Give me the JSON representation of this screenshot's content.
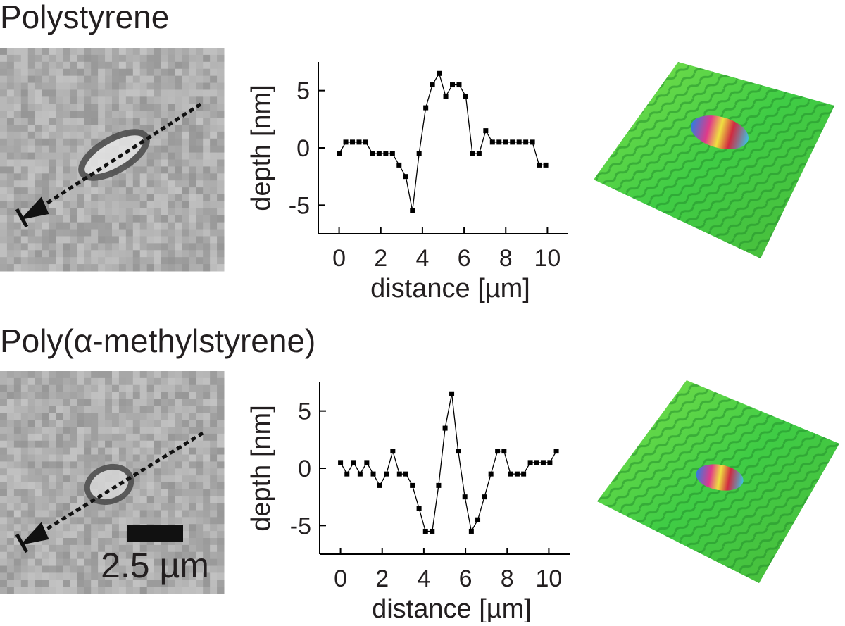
{
  "chart_data": [
    {
      "type": "line",
      "title": "Polystyrene",
      "x_label": "distance [µm]",
      "y_label": "depth [nm]",
      "color": "#000000",
      "marker": "square",
      "x": [
        0,
        0.32,
        0.64,
        0.96,
        1.28,
        1.6,
        1.92,
        2.24,
        2.56,
        2.88,
        3.2,
        3.52,
        3.84,
        4.16,
        4.48,
        4.8,
        5.12,
        5.44,
        5.76,
        6.08,
        6.4,
        6.72,
        7.04,
        7.36,
        7.68,
        8,
        8.32,
        8.64,
        8.96,
        9.28,
        9.6,
        9.92
      ],
      "values": [
        -0.5,
        0.5,
        0.5,
        0.5,
        0.5,
        -0.5,
        -0.5,
        -0.5,
        -0.5,
        -1.5,
        -2.5,
        -5.5,
        -0.5,
        3.5,
        5.5,
        6.5,
        4.5,
        5.5,
        5.5,
        4.5,
        -0.5,
        -0.5,
        1.5,
        0.5,
        0.5,
        0.5,
        0.5,
        0.5,
        0.5,
        0.5,
        -1.5,
        -1.5
      ],
      "xlim": [
        -1,
        11
      ],
      "ylim": [
        -7.5,
        7.5
      ],
      "xticks": [
        0,
        2,
        4,
        6,
        8,
        10
      ],
      "yticks": [
        -5,
        0,
        5
      ]
    },
    {
      "type": "line",
      "title": "Poly(α-methylstyrene)",
      "x_label": "distance [µm]",
      "y_label": "depth [nm]",
      "color": "#000000",
      "marker": "square",
      "x": [
        0,
        0.31,
        0.63,
        0.94,
        1.26,
        1.57,
        1.88,
        2.2,
        2.51,
        2.83,
        3.14,
        3.45,
        3.77,
        4.08,
        4.4,
        4.71,
        5.02,
        5.34,
        5.65,
        5.97,
        6.28,
        6.59,
        6.91,
        7.22,
        7.54,
        7.85,
        8.16,
        8.48,
        8.79,
        9.11,
        9.42,
        9.73,
        10.05,
        10.36
      ],
      "values": [
        0.5,
        -0.5,
        0.5,
        -0.5,
        0.5,
        -0.5,
        -1.5,
        -0.5,
        1.5,
        -0.5,
        -0.5,
        -1.5,
        -3.5,
        -5.5,
        -5.5,
        -1.5,
        3.5,
        6.5,
        1.5,
        -2.5,
        -5.5,
        -4.5,
        -2.5,
        -0.5,
        1.5,
        1.5,
        -0.5,
        -0.5,
        -0.5,
        0.5,
        0.5,
        0.5,
        0.5,
        1.5
      ],
      "xlim": [
        -1,
        11
      ],
      "ylim": [
        -7.5,
        7.5
      ],
      "xticks": [
        0,
        2,
        4,
        6,
        8,
        10
      ],
      "yticks": [
        -5,
        0,
        5
      ]
    }
  ],
  "image": {
    "scale_bar": "2.5 µm"
  }
}
